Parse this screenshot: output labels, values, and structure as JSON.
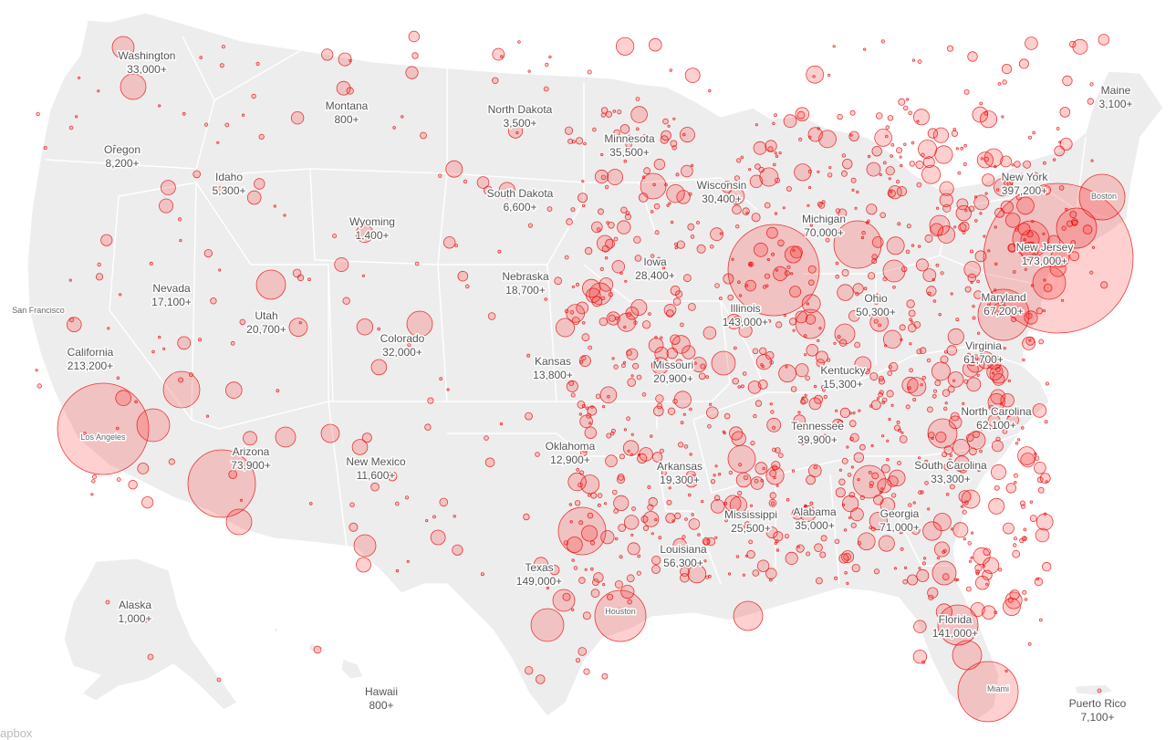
{
  "states": [
    {
      "id": "washington",
      "name": "Washington",
      "count": "33,000+"
    },
    {
      "id": "oregon",
      "name": "Oregon",
      "count": "8,200+"
    },
    {
      "id": "idaho",
      "name": "Idaho",
      "count": "5,300+"
    },
    {
      "id": "montana",
      "name": "Montana",
      "count": "800+"
    },
    {
      "id": "wyoming",
      "name": "Wyoming",
      "count": "1,400+"
    },
    {
      "id": "nevada",
      "name": "Nevada",
      "count": "17,100+"
    },
    {
      "id": "utah",
      "name": "Utah",
      "count": "20,700+"
    },
    {
      "id": "california",
      "name": "California",
      "count": "213,200+"
    },
    {
      "id": "colorado",
      "name": "Colorado",
      "count": "32,000+"
    },
    {
      "id": "arizona",
      "name": "Arizona",
      "count": "73,900+"
    },
    {
      "id": "new-mexico",
      "name": "New Mexico",
      "count": "11,600+"
    },
    {
      "id": "north-dakota",
      "name": "North Dakota",
      "count": "3,500+"
    },
    {
      "id": "south-dakota",
      "name": "South Dakota",
      "count": "6,600+"
    },
    {
      "id": "nebraska",
      "name": "Nebraska",
      "count": "18,700+"
    },
    {
      "id": "kansas",
      "name": "Kansas",
      "count": "13,800+"
    },
    {
      "id": "oklahoma",
      "name": "Oklahoma",
      "count": "12,900+"
    },
    {
      "id": "texas",
      "name": "Texas",
      "count": "149,000+"
    },
    {
      "id": "minnesota",
      "name": "Minnesota",
      "count": "35,500+"
    },
    {
      "id": "iowa",
      "name": "Iowa",
      "count": "28,400+"
    },
    {
      "id": "missouri",
      "name": "Missouri",
      "count": "20,900+"
    },
    {
      "id": "arkansas",
      "name": "Arkansas",
      "count": "19,300+"
    },
    {
      "id": "louisiana",
      "name": "Louisiana",
      "count": "56,300+"
    },
    {
      "id": "wisconsin",
      "name": "Wisconsin",
      "count": "30,400+"
    },
    {
      "id": "illinois",
      "name": "Illinois",
      "count": "143,000+"
    },
    {
      "id": "michigan",
      "name": "Michigan",
      "count": "70,000+"
    },
    {
      "id": "mississippi",
      "name": "Mississippi",
      "count": "25,500+"
    },
    {
      "id": "alabama",
      "name": "Alabama",
      "count": "35,000+"
    },
    {
      "id": "tennessee",
      "name": "Tennessee",
      "count": "39,900+"
    },
    {
      "id": "kentucky",
      "name": "Kentucky",
      "count": "15,300+"
    },
    {
      "id": "ohio",
      "name": "Ohio",
      "count": "50,300+"
    },
    {
      "id": "georgia",
      "name": "Georgia",
      "count": "71,000+"
    },
    {
      "id": "florida",
      "name": "Florida",
      "count": "141,000+"
    },
    {
      "id": "south-carolina",
      "name": "South Carolina",
      "count": "33,300+"
    },
    {
      "id": "north-carolina",
      "name": "North Carolina",
      "count": "62,100+"
    },
    {
      "id": "virginia",
      "name": "Virginia",
      "count": "61,700+"
    },
    {
      "id": "maryland",
      "name": "Maryland",
      "count": "67,200+"
    },
    {
      "id": "new-jersey",
      "name": "New Jersey",
      "count": "173,000+"
    },
    {
      "id": "new-york",
      "name": "New York",
      "count": "397,200+"
    },
    {
      "id": "maine",
      "name": "Maine",
      "count": "3,100+"
    },
    {
      "id": "alaska",
      "name": "Alaska",
      "count": "1,000+"
    },
    {
      "id": "hawaii",
      "name": "Hawaii",
      "count": "800+"
    },
    {
      "id": "puerto-rico",
      "name": "Puerto Rico",
      "count": "7,100+"
    }
  ],
  "cities": [
    {
      "id": "san-francisco",
      "name": "San Francisco"
    },
    {
      "id": "los-angeles",
      "name": "Los Angeles"
    },
    {
      "id": "houston",
      "name": "Houston"
    },
    {
      "id": "miami",
      "name": "Miami"
    },
    {
      "id": "boston",
      "name": "Boston"
    }
  ],
  "credit": "apbox",
  "colors": {
    "land": "#ededed",
    "bubble_fill": "rgba(255,40,40,0.22)",
    "bubble_stroke": "#e60000",
    "text": "#555555"
  }
}
